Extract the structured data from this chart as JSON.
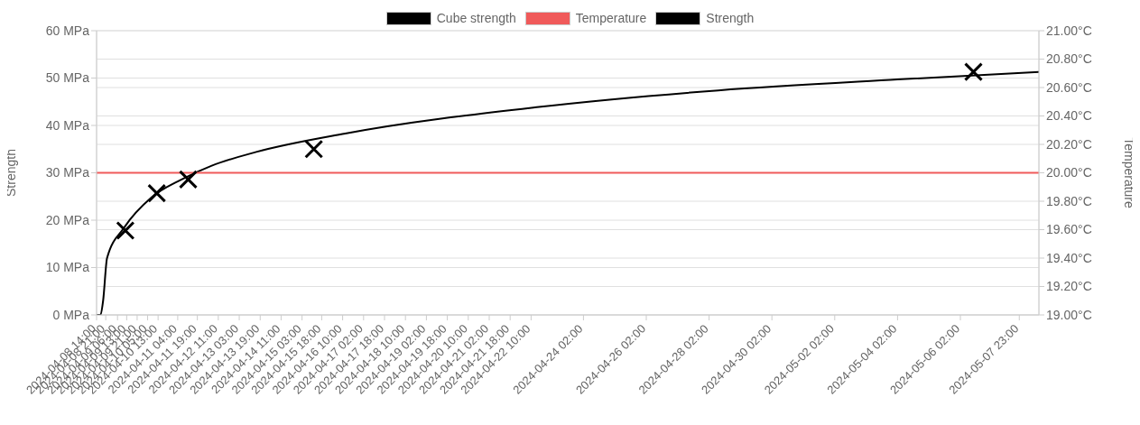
{
  "chart_data": {
    "type": "line",
    "ylabel": "Strength",
    "y2label": "Temperature",
    "legend": "top",
    "grid": true,
    "xlim": [
      "2024-04-08T14:00",
      "2024-05-08T14:00"
    ],
    "xticks": [
      {
        "value": "2024-04-08T14:00",
        "label": "2024-04-08 14:00"
      },
      {
        "value": "2024-04-08T21:00",
        "label": "2024-04-08 21:00"
      },
      {
        "value": "2024-04-09T06:00",
        "label": "2024-04-09 06:00"
      },
      {
        "value": "2024-04-09T13:00",
        "label": "2024-04-09 13:00"
      },
      {
        "value": "2024-04-09T21:00",
        "label": "2024-04-09 21:00"
      },
      {
        "value": "2024-04-10T05:00",
        "label": "2024-04-10 05:00"
      },
      {
        "value": "2024-04-10T13:00",
        "label": "2024-04-10 13:00"
      },
      {
        "value": "2024-04-11T04:00",
        "label": "2024-04-11 04:00"
      },
      {
        "value": "2024-04-11T19:00",
        "label": "2024-04-11 19:00"
      },
      {
        "value": "2024-04-12T11:00",
        "label": "2024-04-12 11:00"
      },
      {
        "value": "2024-04-13T03:00",
        "label": "2024-04-13 03:00"
      },
      {
        "value": "2024-04-13T19:00",
        "label": "2024-04-13 19:00"
      },
      {
        "value": "2024-04-14T11:00",
        "label": "2024-04-14 11:00"
      },
      {
        "value": "2024-04-15T03:00",
        "label": "2024-04-15 03:00"
      },
      {
        "value": "2024-04-15T18:00",
        "label": "2024-04-15 18:00"
      },
      {
        "value": "2024-04-16T10:00",
        "label": "2024-04-16 10:00"
      },
      {
        "value": "2024-04-17T02:00",
        "label": "2024-04-17 02:00"
      },
      {
        "value": "2024-04-17T18:00",
        "label": "2024-04-17 18:00"
      },
      {
        "value": "2024-04-18T10:00",
        "label": "2024-04-18 10:00"
      },
      {
        "value": "2024-04-19T02:00",
        "label": "2024-04-19 02:00"
      },
      {
        "value": "2024-04-19T18:00",
        "label": "2024-04-19 18:00"
      },
      {
        "value": "2024-04-20T10:00",
        "label": "2024-04-20 10:00"
      },
      {
        "value": "2024-04-21T02:00",
        "label": "2024-04-21 02:00"
      },
      {
        "value": "2024-04-21T18:00",
        "label": "2024-04-21 18:00"
      },
      {
        "value": "2024-04-22T10:00",
        "label": "2024-04-22 10:00"
      },
      {
        "value": "2024-04-24T02:00",
        "label": "2024-04-24 02:00"
      },
      {
        "value": "2024-04-26T02:00",
        "label": "2024-04-26 02:00"
      },
      {
        "value": "2024-04-28T02:00",
        "label": "2024-04-28 02:00"
      },
      {
        "value": "2024-04-30T02:00",
        "label": "2024-04-30 02:00"
      },
      {
        "value": "2024-05-02T02:00",
        "label": "2024-05-02 02:00"
      },
      {
        "value": "2024-05-04T02:00",
        "label": "2024-05-04 02:00"
      },
      {
        "value": "2024-05-06T02:00",
        "label": "2024-05-06 02:00"
      },
      {
        "value": "2024-05-07T23:00",
        "label": "2024-05-07 23:00"
      }
    ],
    "ylim": [
      0,
      60
    ],
    "yticks": [
      {
        "value": 0,
        "label": "0 MPa"
      },
      {
        "value": 10,
        "label": "10 MPa"
      },
      {
        "value": 20,
        "label": "20 MPa"
      },
      {
        "value": 30,
        "label": "30 MPa"
      },
      {
        "value": 40,
        "label": "40 MPa"
      },
      {
        "value": 50,
        "label": "50 MPa"
      },
      {
        "value": 60,
        "label": "60 MPa"
      }
    ],
    "y2lim": [
      19,
      21
    ],
    "y2ticks": [
      {
        "value": 19,
        "label": "19.00°C"
      },
      {
        "value": 19.2,
        "label": "19.20°C"
      },
      {
        "value": 19.4,
        "label": "19.40°C"
      },
      {
        "value": 19.6,
        "label": "19.60°C"
      },
      {
        "value": 19.8,
        "label": "19.80°C"
      },
      {
        "value": 20,
        "label": "20.00°C"
      },
      {
        "value": 20.2,
        "label": "20.20°C"
      },
      {
        "value": 20.4,
        "label": "20.40°C"
      },
      {
        "value": 20.6,
        "label": "20.60°C"
      },
      {
        "value": 20.8,
        "label": "20.80°C"
      },
      {
        "value": 21,
        "label": "21.00°C"
      }
    ],
    "series": [
      {
        "name": "Cube strength",
        "color": "#000000",
        "x": [
          "2024-04-08T14:00",
          "2024-04-08T17:00",
          "2024-04-08T19:00",
          "2024-04-08T22:00",
          "2024-04-09T11:00",
          "2024-04-10T08:00",
          "2024-04-11T07:00",
          "2024-04-12T06:00",
          "2024-04-13T16:00",
          "2024-04-16T12:00",
          "2024-04-22T16:00",
          "2024-04-28T09:00",
          "2024-05-04T02:00",
          "2024-05-08T14:00"
        ],
        "values": [
          0,
          0,
          3,
          12,
          18.4,
          24.8,
          28.6,
          31.5,
          34.4,
          38.3,
          43.9,
          47.4,
          49.7,
          51.3
        ]
      },
      {
        "name": "Temperature",
        "axis": "y2",
        "color": "#f05a5a",
        "x": [
          "2024-04-08T14:00",
          "2024-05-08T14:00"
        ],
        "values": [
          20,
          20
        ]
      },
      {
        "name": "Strength",
        "type": "scatter",
        "marker": "cross",
        "color": "#000000",
        "x": [
          "2024-04-09T12:00",
          "2024-04-10T12:00",
          "2024-04-11T12:00",
          "2024-04-15T12:00",
          "2024-05-06T12:00"
        ],
        "values": [
          17.8,
          25.7,
          28.6,
          35,
          51.3
        ]
      }
    ]
  }
}
